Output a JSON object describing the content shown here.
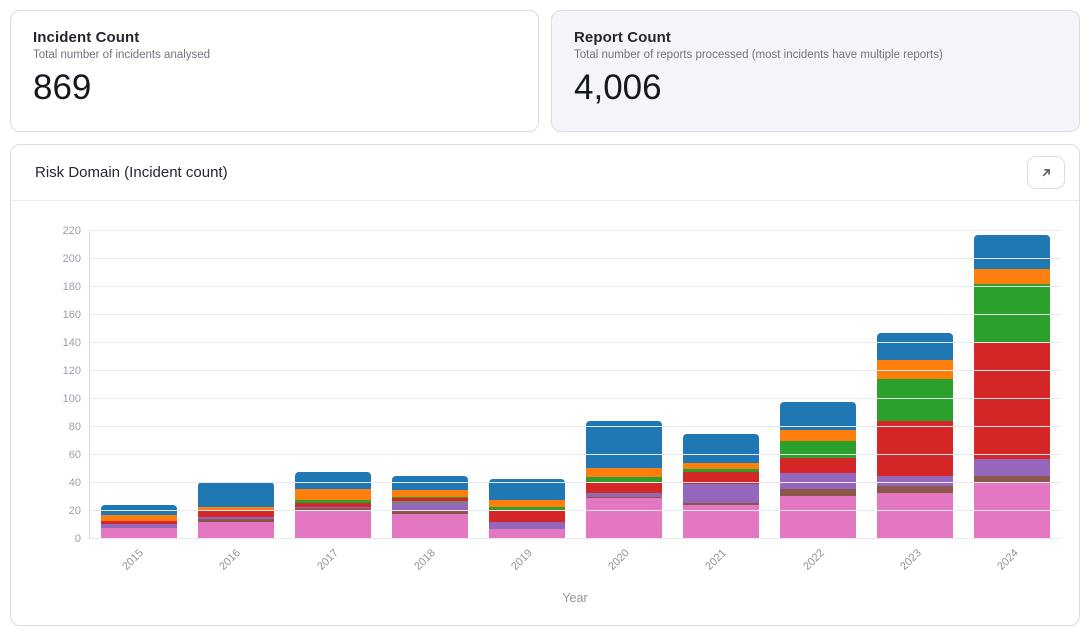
{
  "cards": [
    {
      "title": "Incident Count",
      "subtitle": "Total number of incidents analysed",
      "value": "869",
      "highlighted": false
    },
    {
      "title": "Report Count",
      "subtitle": "Total number of reports processed (most incidents have multiple reports)",
      "value": "4,006",
      "highlighted": true
    }
  ],
  "chart_card": {
    "title": "Risk Domain (Incident count)",
    "expand_icon": "arrow-up-right"
  },
  "chart_data": {
    "type": "bar",
    "stacked": true,
    "title": "Risk Domain (Incident count)",
    "xlabel": "Year",
    "ylabel": "",
    "ylim": [
      0,
      220
    ],
    "yticks": [
      0,
      20,
      40,
      60,
      80,
      100,
      120,
      140,
      160,
      180,
      200,
      220
    ],
    "grid": true,
    "legend_position": "none",
    "categories": [
      "2015",
      "2016",
      "2017",
      "2018",
      "2019",
      "2020",
      "2021",
      "2022",
      "2023",
      "2024"
    ],
    "series": [
      {
        "name": "pink",
        "color": "#e377c2",
        "values": [
          8,
          12,
          21,
          18,
          7,
          29,
          24,
          31,
          33,
          40
        ]
      },
      {
        "name": "brown",
        "color": "#8c564b",
        "values": [
          0,
          2,
          1,
          2,
          0,
          1,
          2,
          5,
          5,
          5
        ]
      },
      {
        "name": "purple",
        "color": "#9467bd",
        "values": [
          3,
          2,
          1,
          5,
          5,
          2,
          13,
          11,
          7,
          12
        ]
      },
      {
        "name": "gray",
        "color": "#7f7f7f",
        "values": [
          0,
          0,
          0,
          2,
          0,
          1,
          0,
          0,
          0,
          0
        ]
      },
      {
        "name": "red",
        "color": "#d62728",
        "values": [
          2,
          4,
          3,
          2,
          9,
          8,
          9,
          11,
          39,
          83
        ]
      },
      {
        "name": "green",
        "color": "#2ca02c",
        "values": [
          0,
          0,
          2,
          1,
          2,
          3,
          2,
          12,
          30,
          42
        ]
      },
      {
        "name": "orange",
        "color": "#ff7f0e",
        "values": [
          4,
          3,
          8,
          5,
          5,
          7,
          4,
          8,
          14,
          11
        ]
      },
      {
        "name": "blue",
        "color": "#1f77b4",
        "values": [
          7,
          18,
          12,
          10,
          15,
          33,
          21,
          20,
          19,
          24
        ]
      }
    ],
    "totals": [
      24,
      41,
      48,
      45,
      43,
      84,
      75,
      98,
      147,
      217
    ]
  }
}
